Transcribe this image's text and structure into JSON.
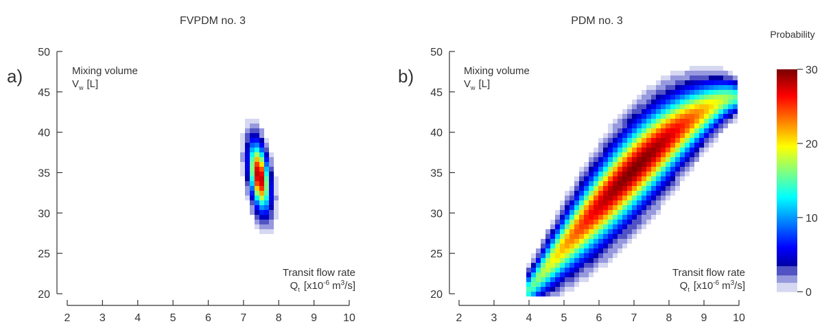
{
  "chart_data": [
    {
      "type": "heatmap",
      "title": "FVPDM no. 3",
      "panel_label": "a)",
      "ylabel_line1": "Mixing volume",
      "ylabel_line2": "V",
      "ylabel_sub": "w",
      "ylabel_unit": "[L]",
      "xlabel_line1": "Transit flow rate",
      "xlabel_line2": "Q",
      "xlabel_sub": "t",
      "xlabel_unit": "[x10",
      "xlabel_exp": "-6",
      "xlabel_unit_end": "m",
      "xlabel_exp2": "3",
      "xlabel_unit_tail": "/s]",
      "xlim": [
        2,
        10
      ],
      "ylim": [
        20,
        50
      ],
      "xticks": [
        "2",
        "3",
        "4",
        "5",
        "6",
        "7",
        "8",
        "9",
        "10"
      ],
      "yticks": [
        "20",
        "25",
        "30",
        "35",
        "40",
        "45",
        "50"
      ],
      "distribution": {
        "x_center": 7.45,
        "y_center": 34.5,
        "sigma_major": 2.6,
        "sigma_minor": 0.17,
        "slope_dx_per_dy": -0.028,
        "peak": 30
      }
    },
    {
      "type": "heatmap",
      "title": "PDM no. 3",
      "panel_label": "b)",
      "ylabel_line1": "Mixing volume",
      "ylabel_line2": "V",
      "ylabel_sub": "w",
      "ylabel_unit": "[L]",
      "xlabel_line1": "Transit flow rate",
      "xlabel_line2": "Q",
      "xlabel_sub": "t",
      "xlabel_unit": "[x10",
      "xlabel_exp": "-6",
      "xlabel_unit_end": "m",
      "xlabel_exp2": "3",
      "xlabel_unit_tail": "/s]",
      "xlim": [
        2,
        10
      ],
      "ylim": [
        20,
        50
      ],
      "xticks": [
        "2",
        "3",
        "4",
        "5",
        "6",
        "7",
        "8",
        "9",
        "10"
      ],
      "yticks": [
        "20",
        "25",
        "30",
        "35",
        "40",
        "45",
        "50"
      ],
      "distribution": {
        "x_center": 7.0,
        "y_center": 34.0,
        "sigma_major": 3.2,
        "sigma_minor": 0.42,
        "peak": 30
      }
    }
  ],
  "colorbar": {
    "label": "Probability",
    "ticks": [
      "0",
      "10",
      "20",
      "30"
    ],
    "range": [
      0,
      30
    ],
    "colormap": "jet"
  }
}
